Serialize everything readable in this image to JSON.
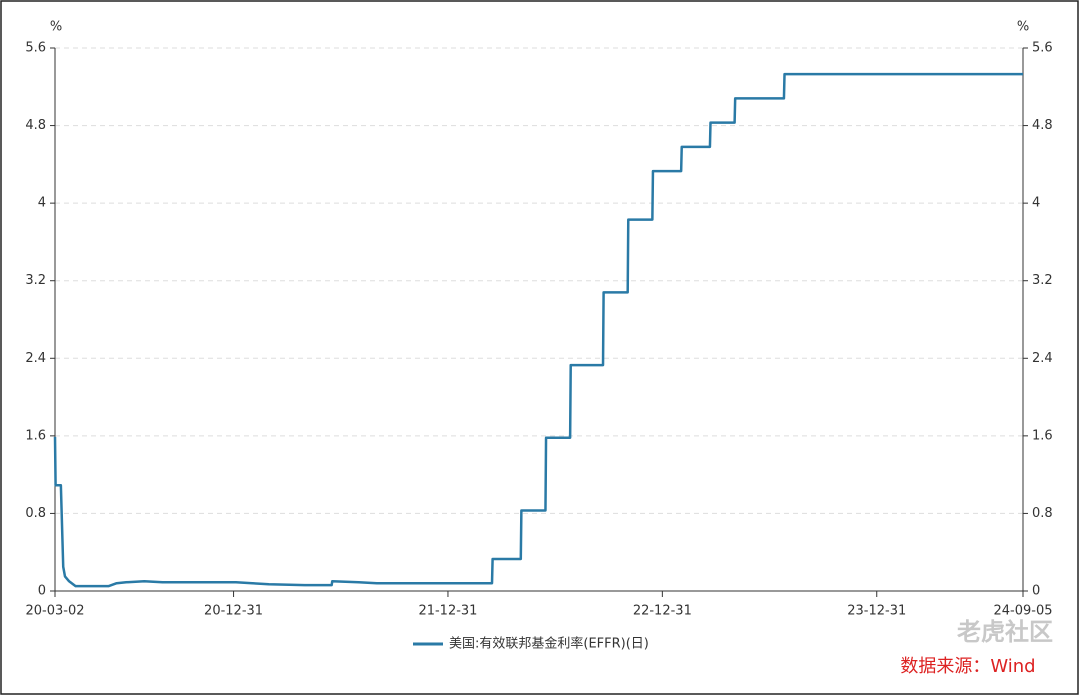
{
  "chart_data": {
    "type": "line",
    "y_unit": "%",
    "y2_unit": "%",
    "x": [
      "20-03-02",
      "20-03-03",
      "20-03-12",
      "20-03-16",
      "20-03-19",
      "20-03-26",
      "20-04-06",
      "20-06-01",
      "20-06-15",
      "20-07-01",
      "20-08-01",
      "20-09-01",
      "20-12-01",
      "21-01-04",
      "21-02-01",
      "21-03-01",
      "21-05-01",
      "21-06-16",
      "21-06-17",
      "21-08-01",
      "21-09-01",
      "21-12-01",
      "22-03-16",
      "22-03-17",
      "22-05-04",
      "22-05-05",
      "22-06-15",
      "22-06-16",
      "22-07-27",
      "22-07-28",
      "22-09-21",
      "22-09-22",
      "22-11-02",
      "22-11-03",
      "22-12-14",
      "22-12-15",
      "23-02-01",
      "23-02-02",
      "23-03-22",
      "23-03-23",
      "23-05-03",
      "23-05-04",
      "23-07-26",
      "23-07-27",
      "24-09-05"
    ],
    "series": [
      {
        "name": "美国:有效联邦基金利率(EFFR)(日)",
        "color": "#2a7aa6",
        "values": [
          1.59,
          1.09,
          1.09,
          0.25,
          0.15,
          0.1,
          0.05,
          0.05,
          0.08,
          0.09,
          0.1,
          0.09,
          0.09,
          0.09,
          0.08,
          0.07,
          0.06,
          0.06,
          0.1,
          0.09,
          0.08,
          0.08,
          0.08,
          0.33,
          0.33,
          0.83,
          0.83,
          1.58,
          1.58,
          2.33,
          2.33,
          3.08,
          3.08,
          3.83,
          3.83,
          4.33,
          4.33,
          4.58,
          4.58,
          4.83,
          4.83,
          5.08,
          5.08,
          5.33,
          5.33
        ]
      }
    ],
    "xlim": [
      "20-03-02",
      "24-09-05"
    ],
    "xticks": [
      "20-03-02",
      "20-12-31",
      "21-12-31",
      "22-12-31",
      "23-12-31",
      "24-09-05"
    ],
    "ylim": [
      0,
      5.6
    ],
    "yticks": [
      0,
      0.8,
      1.6,
      2.4,
      3.2,
      4,
      4.8,
      5.6
    ],
    "y2lim": [
      0,
      5.6
    ],
    "y2ticks": [
      0,
      0.8,
      1.6,
      2.4,
      3.2,
      4,
      4.8,
      5.6
    ],
    "grid": true,
    "watermark": "老虎社区",
    "source": "数据来源：Wind"
  }
}
